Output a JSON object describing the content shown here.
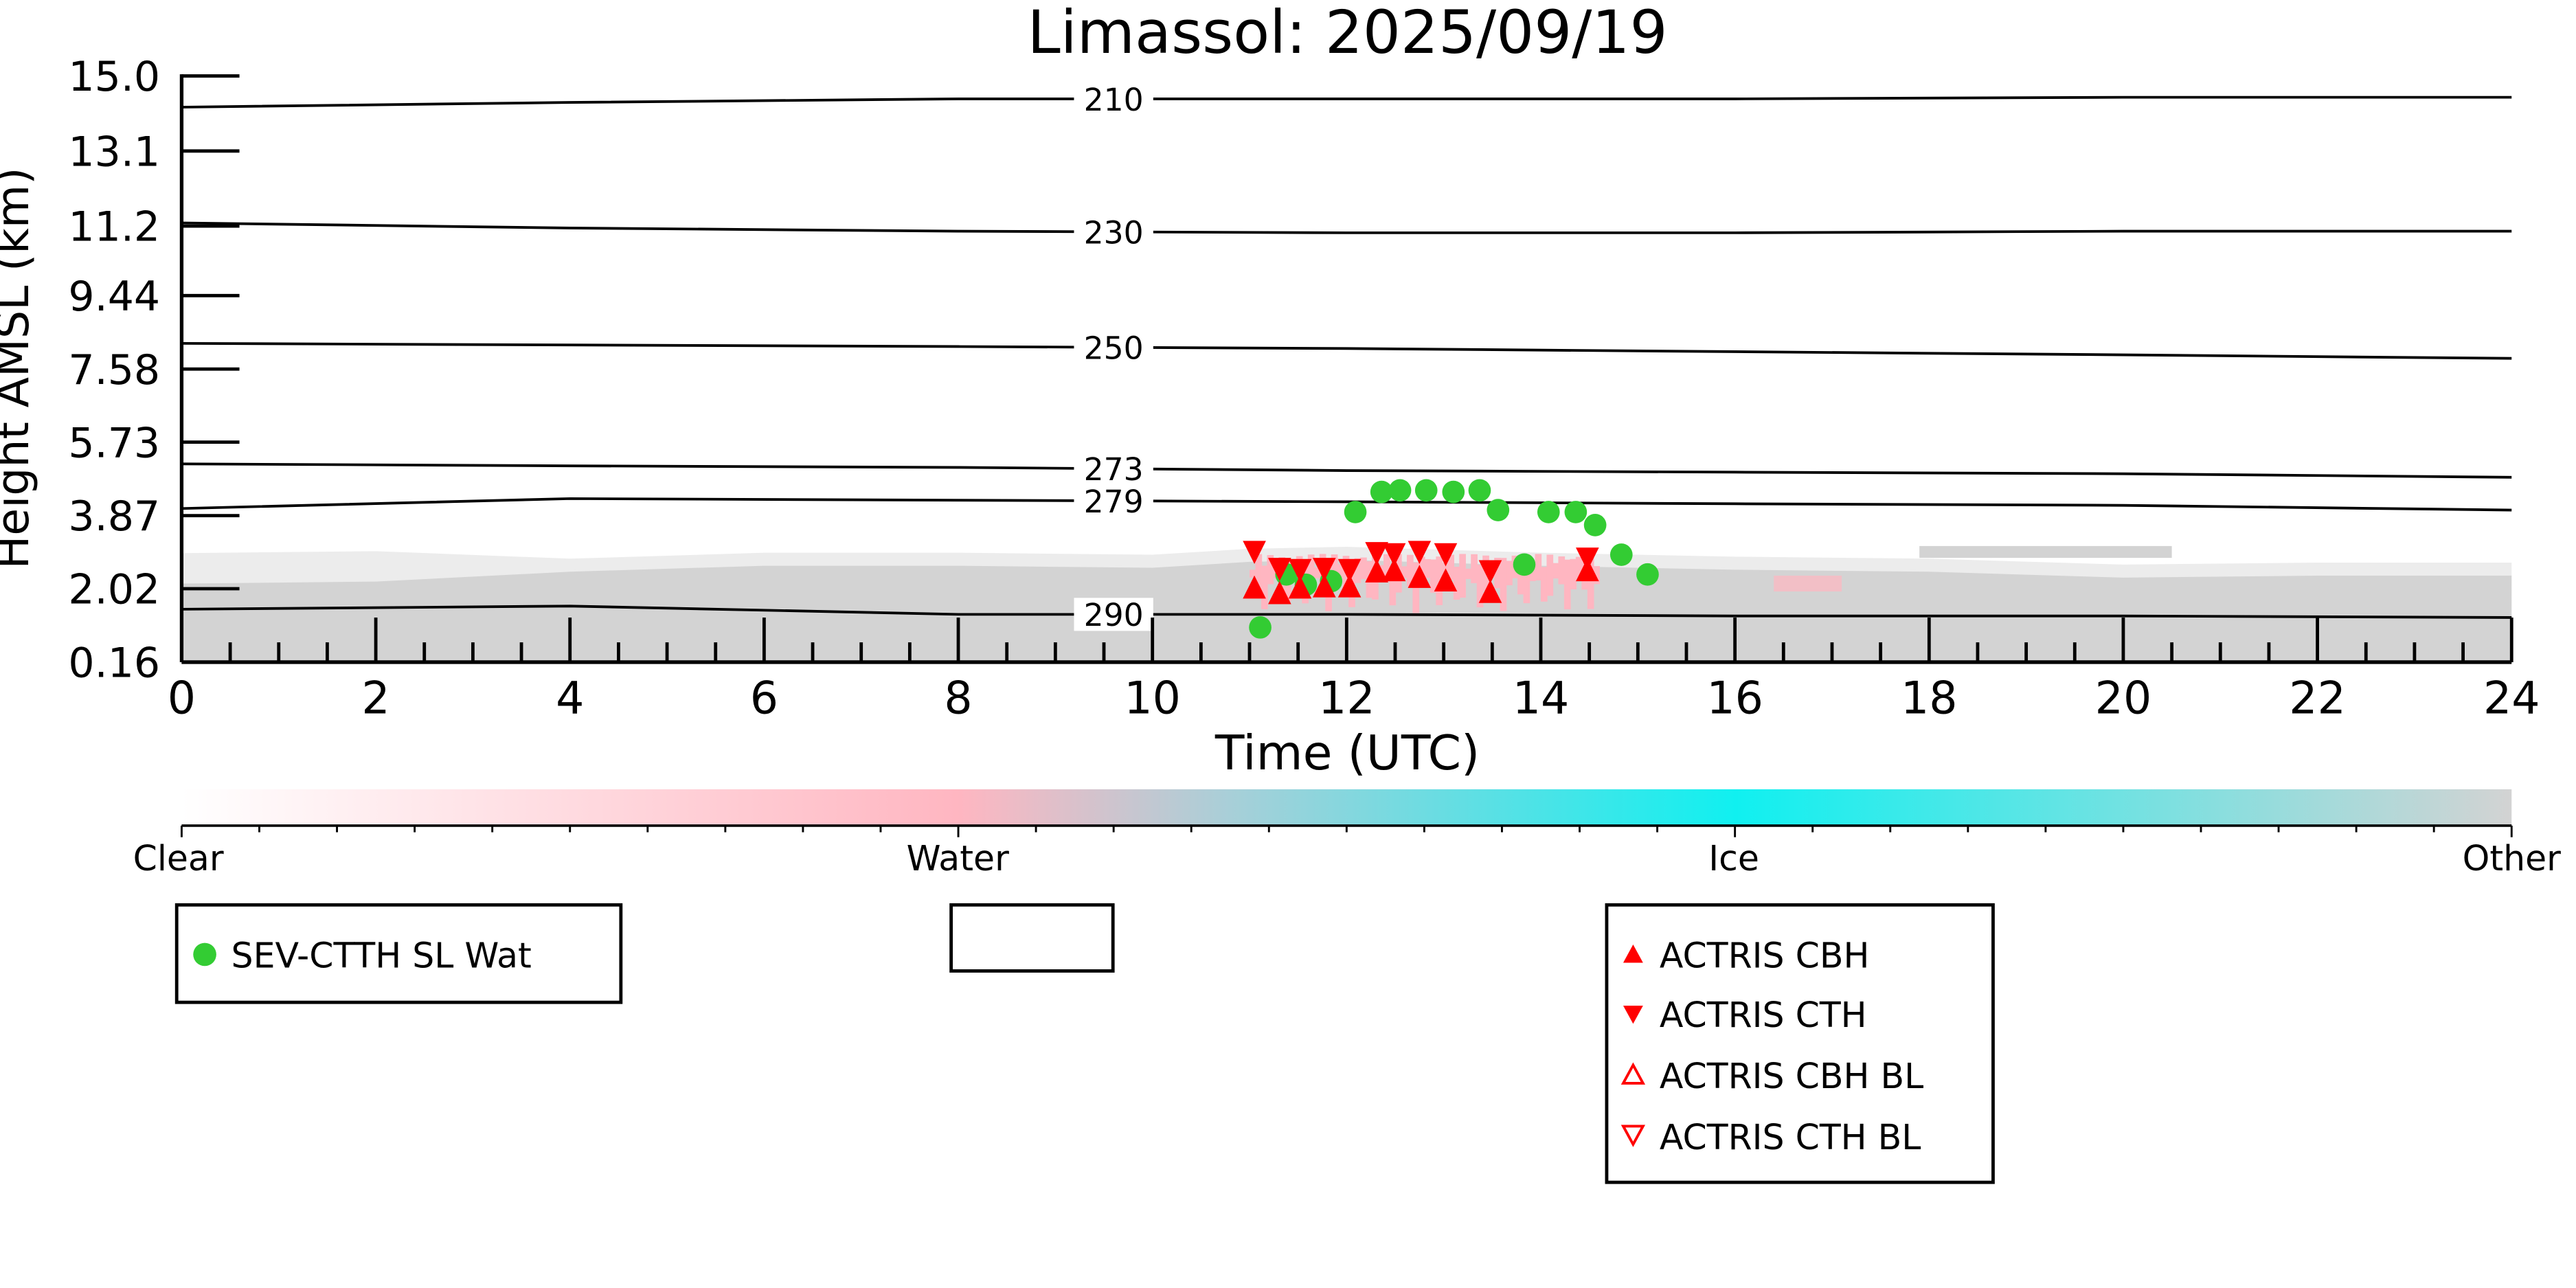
{
  "chart_data": {
    "type": "scatter",
    "title": "Limassol: 2025/09/19",
    "xlabel": "Time (UTC)",
    "ylabel": "Height AMSL (km)",
    "xlim": [
      0,
      24
    ],
    "ylim": [
      0.16,
      15.0
    ],
    "xticks": [
      "0",
      "2",
      "4",
      "6",
      "8",
      "10",
      "12",
      "14",
      "16",
      "18",
      "20",
      "22",
      "24"
    ],
    "yticks": [
      "0.16",
      "2.02",
      "3.87",
      "5.73",
      "7.58",
      "9.44",
      "11.2",
      "13.1",
      "15.0"
    ],
    "ytick_values": [
      0.16,
      2.02,
      3.87,
      5.73,
      7.58,
      9.44,
      11.2,
      13.1,
      15.0
    ],
    "contours": {
      "unit": "K",
      "hours": [
        0,
        4,
        8,
        12,
        16,
        20,
        24
      ],
      "label_hour": 9.6,
      "levels": [
        {
          "label": "210",
          "heights": [
            14.21,
            14.33,
            14.42,
            14.42,
            14.42,
            14.46,
            14.46
          ]
        },
        {
          "label": "230",
          "heights": [
            11.28,
            11.15,
            11.07,
            11.03,
            11.03,
            11.07,
            11.07
          ]
        },
        {
          "label": "250",
          "heights": [
            8.23,
            8.19,
            8.15,
            8.1,
            8.02,
            7.94,
            7.85
          ]
        },
        {
          "label": "273",
          "heights": [
            5.18,
            5.13,
            5.09,
            5.01,
            4.97,
            4.93,
            4.84
          ]
        },
        {
          "label": "279",
          "heights": [
            4.05,
            4.3,
            4.26,
            4.22,
            4.17,
            4.13,
            4.01
          ]
        },
        {
          "label": "290",
          "heights": [
            1.5,
            1.58,
            1.37,
            1.37,
            1.33,
            1.33,
            1.29
          ]
        }
      ]
    },
    "cloud_top_other": {
      "hours": [
        0,
        2,
        4,
        6,
        8,
        10,
        11,
        12,
        14,
        16,
        18,
        20,
        22,
        24
      ],
      "heights": [
        2.15,
        2.2,
        2.45,
        2.6,
        2.6,
        2.55,
        2.7,
        2.75,
        2.6,
        2.5,
        2.45,
        2.3,
        2.35,
        2.35
      ]
    },
    "cloud_water_patch": {
      "hours": [
        11.0,
        14.6
      ],
      "heights": [
        1.4,
        2.9
      ]
    },
    "series": [
      {
        "name": "SEV-CTTH SL Wat",
        "marker": "circle",
        "color": "#33cc33",
        "x": [
          11.11,
          11.38,
          11.58,
          11.84,
          12.09,
          12.36,
          12.55,
          12.82,
          13.1,
          13.37,
          13.56,
          13.83,
          14.08,
          14.36,
          14.56,
          14.83,
          15.1
        ],
        "y": [
          1.04,
          2.38,
          2.12,
          2.21,
          3.96,
          4.47,
          4.51,
          4.51,
          4.47,
          4.51,
          4.01,
          2.63,
          3.96,
          3.96,
          3.63,
          2.88,
          2.38
        ]
      },
      {
        "name": "ACTRIS CBH",
        "marker": "triangle-up",
        "color": "#ff0000",
        "x": [
          11.05,
          11.31,
          11.52,
          11.77,
          12.03,
          12.31,
          12.49,
          12.75,
          13.02,
          13.48,
          14.48
        ],
        "y": [
          2.02,
          1.88,
          2.02,
          2.05,
          2.05,
          2.43,
          2.46,
          2.29,
          2.2,
          1.91,
          2.46
        ]
      },
      {
        "name": "ACTRIS CTH",
        "marker": "triangle-down",
        "color": "#ff0000",
        "x": [
          11.05,
          11.31,
          11.52,
          11.77,
          12.03,
          12.31,
          12.49,
          12.75,
          13.02,
          13.48,
          14.48
        ],
        "y": [
          2.98,
          2.55,
          2.52,
          2.55,
          2.52,
          2.95,
          2.92,
          2.98,
          2.92,
          2.49,
          2.81
        ]
      },
      {
        "name": "ACTRIS CBH BL",
        "marker": "triangle-up-open",
        "color": "#ff0000",
        "x": [],
        "y": []
      },
      {
        "name": "ACTRIS CTH BL",
        "marker": "triangle-down-open",
        "color": "#ff0000",
        "x": [],
        "y": []
      }
    ],
    "colorbar": {
      "labels": [
        "Clear",
        "Water",
        "Ice",
        "Other"
      ],
      "colors": [
        "#ffffff",
        "#ffb6c1",
        "#10f0f0",
        "#d3d3d3"
      ]
    },
    "legend": {
      "box1": [
        "SEV-CTTH SL Wat"
      ],
      "box3": [
        "ACTRIS CBH",
        "ACTRIS CTH",
        "ACTRIS CBH BL",
        "ACTRIS CTH BL"
      ]
    }
  }
}
